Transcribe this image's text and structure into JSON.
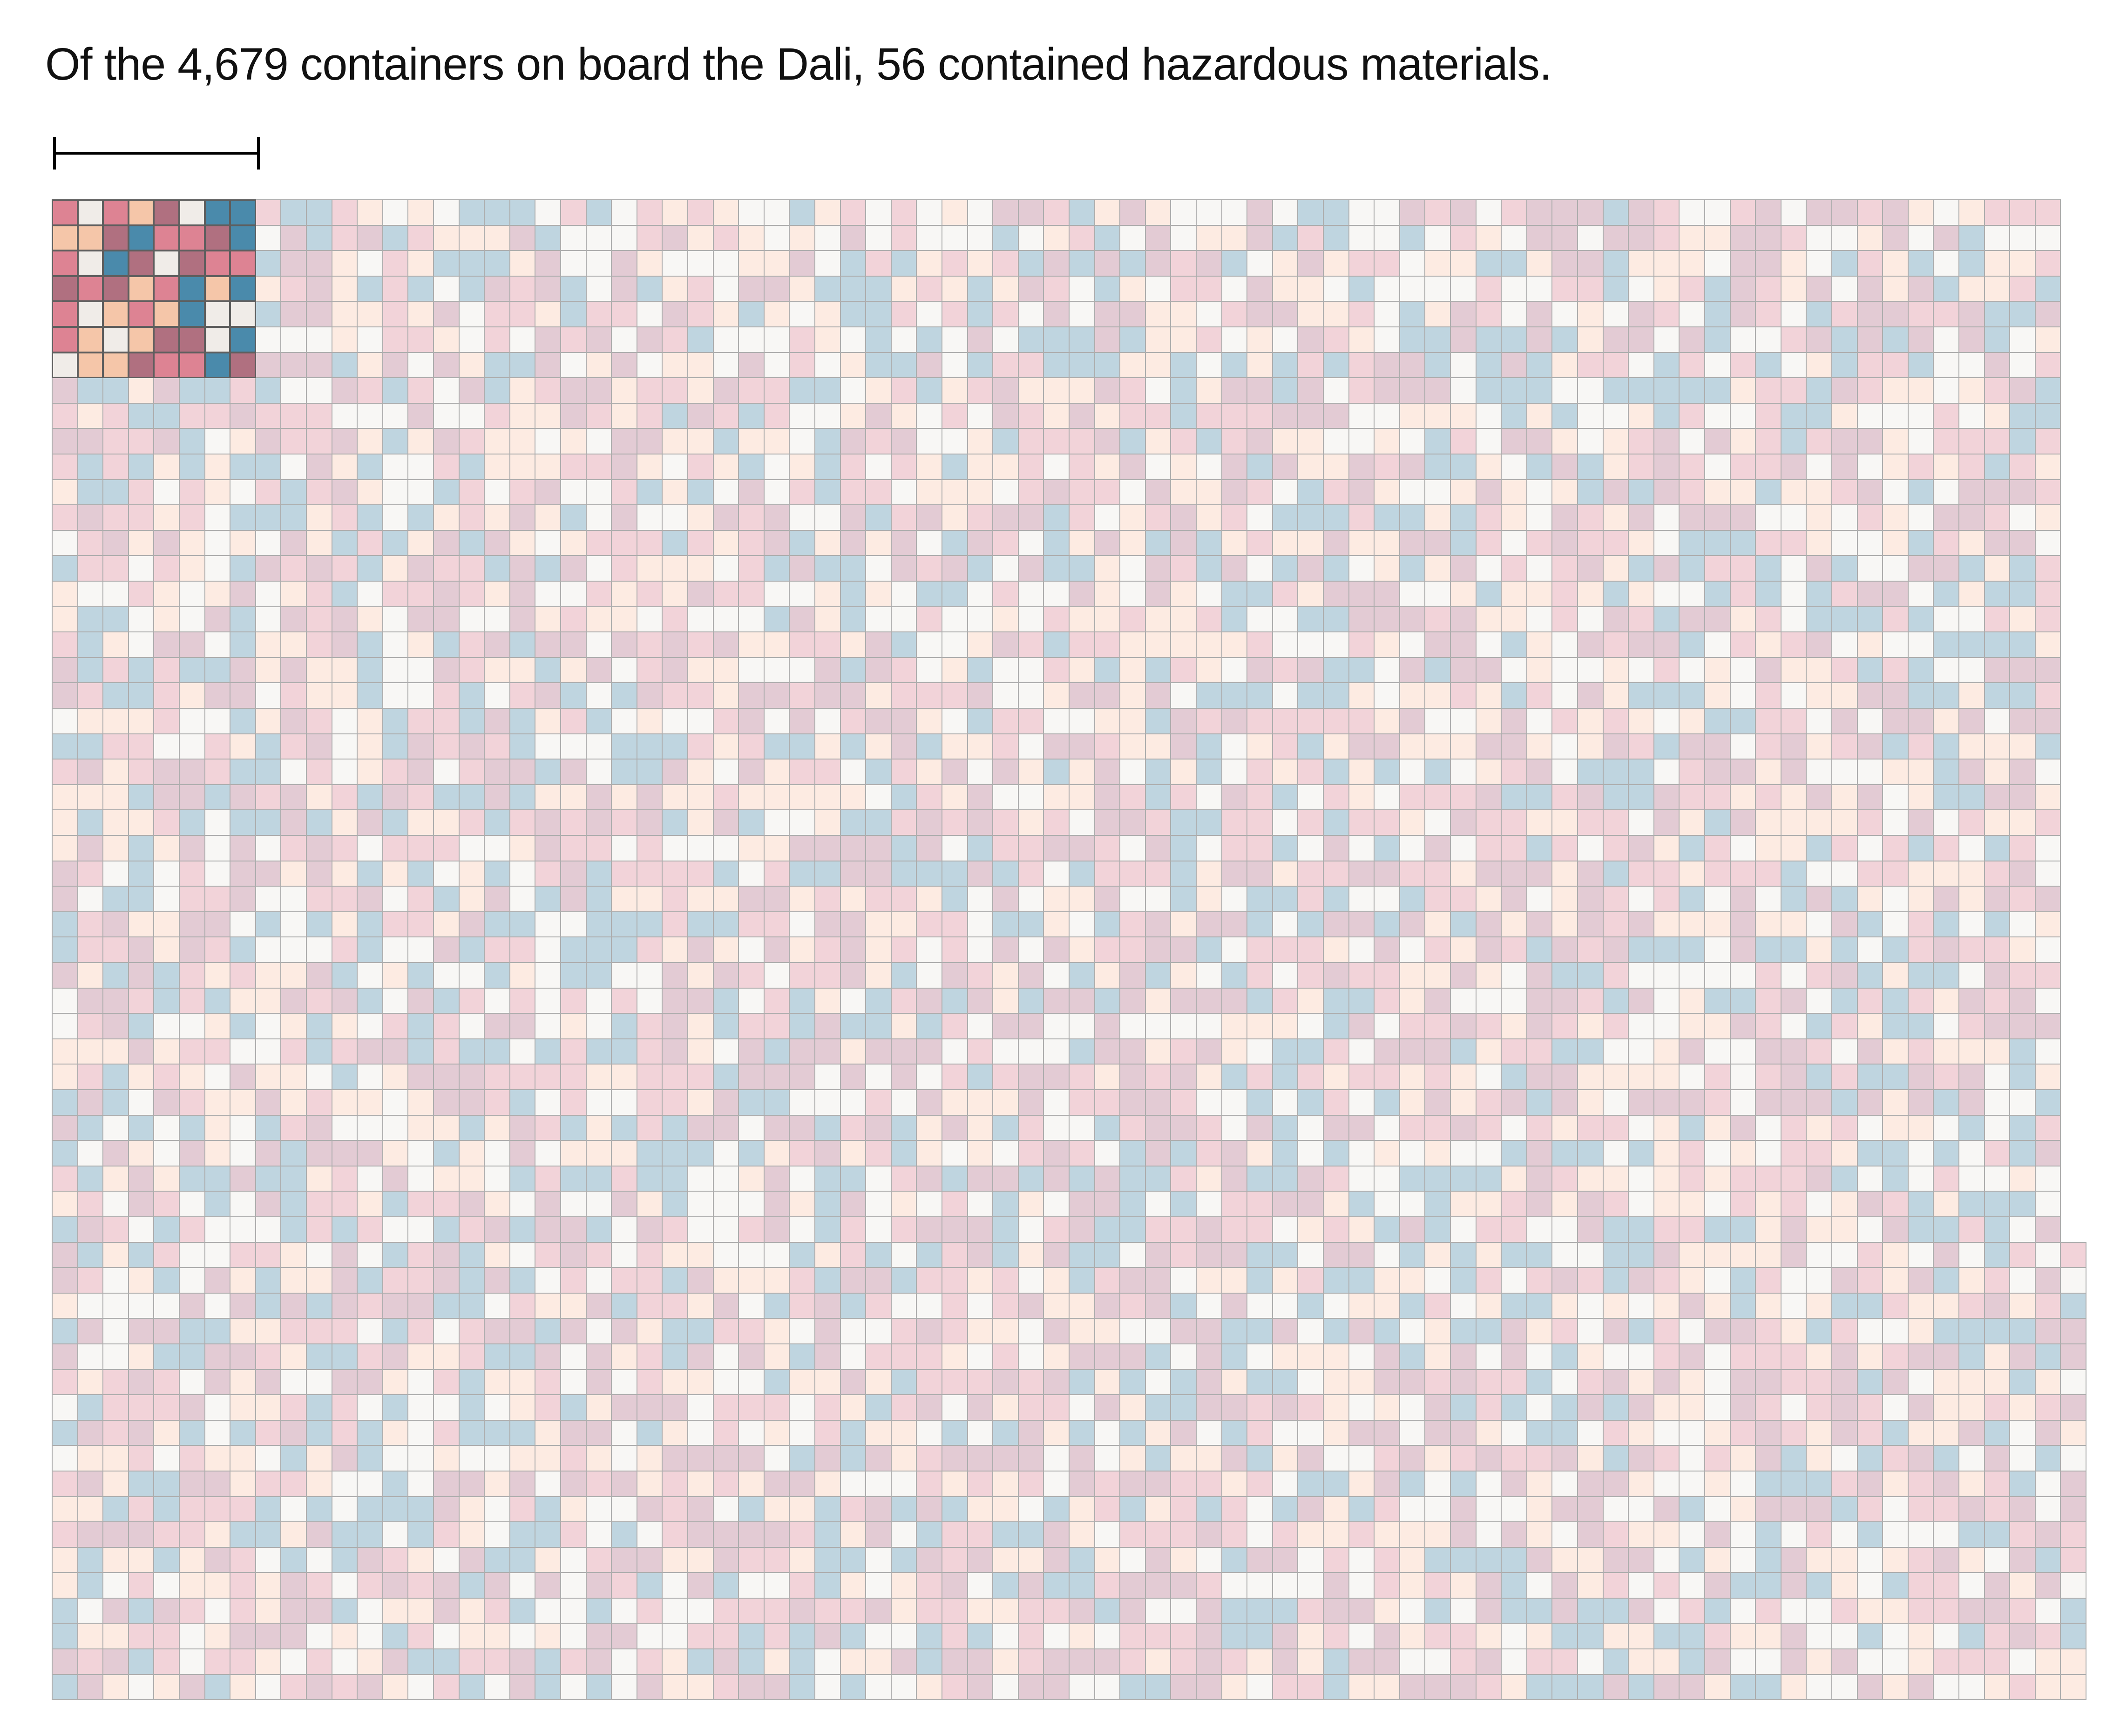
{
  "title": "Of the 4,679 containers on board the Dali, 56 contained hazardous materials.",
  "chart_data": {
    "type": "heatmap",
    "title": "Of the 4,679 containers on board the Dali, 56 contained hazardous materials.",
    "total_containers": 4679,
    "hazardous_containers": 56,
    "layout": "waffle grid, one square per container, hazardous block highlighted at top-left",
    "rows": 59,
    "hazardous_block": {
      "columns": 8,
      "rows": 7
    },
    "colors": {
      "hazardous": [
        "#f0ece8",
        "#f5c6a9",
        "#4a8aab",
        "#dd8393",
        "#b07080"
      ],
      "other": [
        "#f8f7f5",
        "#fdebe2",
        "#bfd5e0",
        "#f2d3d9",
        "#e3cbd4"
      ]
    }
  }
}
